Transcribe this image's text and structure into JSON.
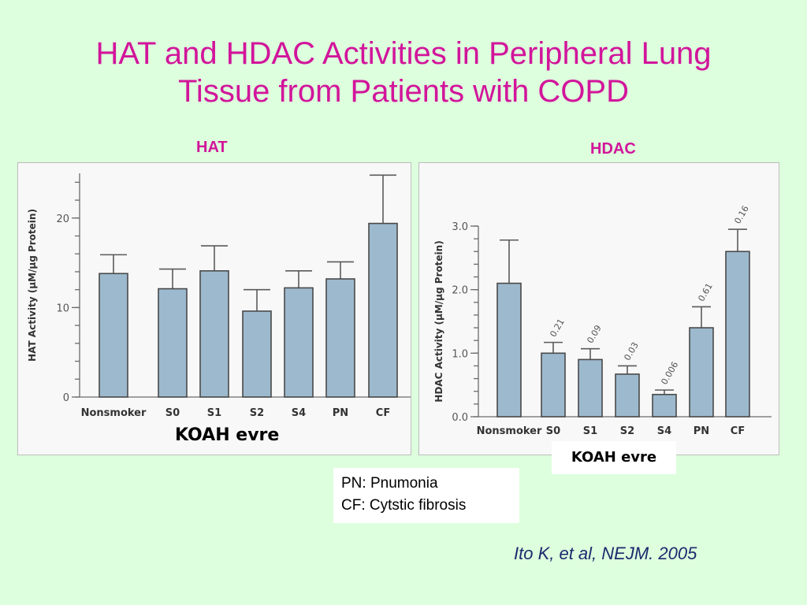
{
  "slide": {
    "title_line1": "HAT and HDAC Activities in Peripheral Lung",
    "title_line2": "Tissue from Patients with COPD",
    "hat_label": "HAT",
    "hdac_label": "HDAC",
    "koah_left": "KOAH evre",
    "koah_right": "KOAH evre",
    "legend_line1": "PN: Pnumonia",
    "legend_line2": "CF: Cytstic fibrosis",
    "citation": "Ito K, et al, NEJM. 2005",
    "title_color": "#d2159b",
    "background_color": "#ddffdd",
    "bar_color": "#9db9cd"
  },
  "chart_data": [
    {
      "type": "bar",
      "categories": [
        "Nonsmoker",
        "S0",
        "S1",
        "S2",
        "S4",
        "PN",
        "CF"
      ],
      "values": [
        13.8,
        12.1,
        14.1,
        9.6,
        12.2,
        13.2,
        19.4
      ],
      "error_upper": [
        15.9,
        14.3,
        16.9,
        12.0,
        14.1,
        15.1,
        24.8
      ],
      "ylabel": "HAT Activity (μM/μg Protein)",
      "ylim": [
        0,
        25
      ],
      "yticks": [
        "0",
        "10",
        "20"
      ],
      "grid": false
    },
    {
      "type": "bar",
      "categories": [
        "Nonsmoker",
        "S0",
        "S1",
        "S2",
        "S4",
        "PN",
        "CF"
      ],
      "values": [
        2.1,
        1.0,
        0.9,
        0.67,
        0.35,
        1.4,
        2.6
      ],
      "error_upper": [
        2.78,
        1.17,
        1.07,
        0.8,
        0.42,
        1.73,
        2.95
      ],
      "data_labels": [
        "",
        "0.21",
        "0.09",
        "0.03",
        "0.006",
        "0.61",
        "0.16"
      ],
      "ylabel": "HDAC Activity (μM/μg Protein)",
      "ylim": [
        0,
        3.0
      ],
      "yticks": [
        "0.0",
        "1.0",
        "2.0",
        "3.0"
      ],
      "grid": false
    }
  ]
}
